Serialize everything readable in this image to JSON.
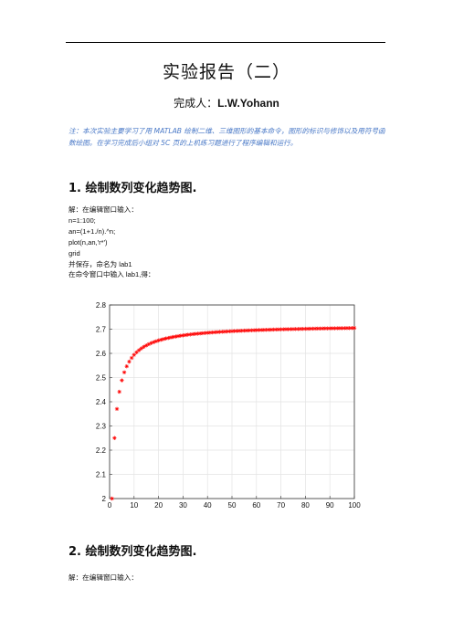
{
  "doc": {
    "title": "实验报告（二）",
    "author_label": "完成人：",
    "author_name": "L.W.Yohann",
    "note": "注：本次实验主要学习了用 MATLAB 绘制二维、三维图形的基本命令，图形的标识与修饰以及用符号函数绘图。在学习完成后小组对 5C 页的上机练习题进行了程序编辑和运行。",
    "section1_heading": "1. 绘制数列变化趋势图.",
    "section2_heading": "2. 绘制数列变化趋势图.",
    "code_lines": [
      "解：在编辑窗口输入：",
      "n=1:100;",
      "an=(1+1./n).^n;",
      "plot(n,an,'r*')",
      "grid",
      "并保存，命名为 lab1",
      "在命令窗口中输入 lab1,得："
    ],
    "section2_intro": "解：在编辑窗口输入："
  },
  "chart_data": {
    "type": "scatter",
    "title": "",
    "xlabel": "",
    "ylabel": "",
    "xlim": [
      0,
      100
    ],
    "ylim": [
      2,
      2.8
    ],
    "xticks": [
      0,
      10,
      20,
      30,
      40,
      50,
      60,
      70,
      80,
      90,
      100
    ],
    "yticks": [
      "2",
      "2.1",
      "2.2",
      "2.3",
      "2.4",
      "2.5",
      "2.6",
      "2.7",
      "2.8"
    ],
    "grid": true,
    "marker": "*",
    "color": "#ff0000",
    "series": [
      {
        "x_from": 1,
        "x_to": 100,
        "expression": "an=(1+1./n).^n"
      }
    ]
  }
}
